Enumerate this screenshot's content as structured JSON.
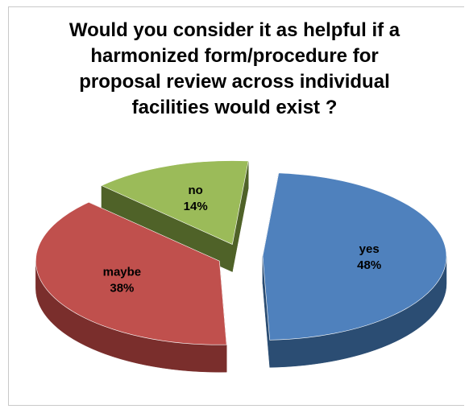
{
  "chart_data": {
    "type": "pie",
    "title_lines": [
      "Would you consider it as helpful if a",
      "harmonized form/procedure for",
      "proposal review across individual",
      "facilities would exist ?"
    ],
    "slices": [
      {
        "label": "yes",
        "value": 48,
        "value_label": "48%",
        "color": "#4F81BD",
        "side_color": "#2B4D73"
      },
      {
        "label": "maybe",
        "value": 38,
        "value_label": "38%",
        "color": "#C0504D",
        "side_color": "#7A2E2C"
      },
      {
        "label": "no",
        "value": 14,
        "value_label": "14%",
        "color": "#9BBB59",
        "side_color": "#4F6228"
      }
    ],
    "style": "3d-exploded",
    "legend": "none"
  }
}
